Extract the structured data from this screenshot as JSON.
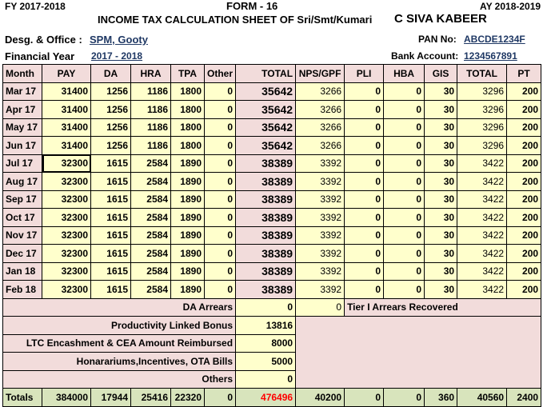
{
  "header": {
    "fy": "FY 2017-2018",
    "form": "FORM - 16",
    "ay": "AY 2018-2019",
    "title": "INCOME TAX CALCULATION SHEET OF Sri/Smt/Kumari",
    "name": "C SIVA KABEER",
    "desg_label": "Desg. & Office :",
    "desg_value": "SPM, Gooty",
    "fin_year_label": "Financial Year",
    "fin_year_value": "2017 - 2018",
    "pan_label": "PAN No:",
    "pan_value": "ABCDE1234F",
    "bank_label": "Bank Account:",
    "bank_value": "1234567891"
  },
  "columns": [
    "Month",
    "PAY",
    "DA",
    "HRA",
    "TPA",
    "Other",
    "TOTAL",
    "NPS/GPF",
    "PLI",
    "HBA",
    "GIS",
    "TOTAL",
    "PT"
  ],
  "rows": [
    [
      "Mar 17",
      "31400",
      "1256",
      "1186",
      "1800",
      "0",
      "35642",
      "3266",
      "0",
      "0",
      "30",
      "3296",
      "200"
    ],
    [
      "Apr 17",
      "31400",
      "1256",
      "1186",
      "1800",
      "0",
      "35642",
      "3266",
      "0",
      "0",
      "30",
      "3296",
      "200"
    ],
    [
      "May 17",
      "31400",
      "1256",
      "1186",
      "1800",
      "0",
      "35642",
      "3266",
      "0",
      "0",
      "30",
      "3296",
      "200"
    ],
    [
      "Jun 17",
      "31400",
      "1256",
      "1186",
      "1800",
      "0",
      "35642",
      "3266",
      "0",
      "0",
      "30",
      "3296",
      "200"
    ],
    [
      "Jul 17",
      "32300",
      "1615",
      "2584",
      "1890",
      "0",
      "38389",
      "3392",
      "0",
      "0",
      "30",
      "3422",
      "200"
    ],
    [
      "Aug 17",
      "32300",
      "1615",
      "2584",
      "1890",
      "0",
      "38389",
      "3392",
      "0",
      "0",
      "30",
      "3422",
      "200"
    ],
    [
      "Sep 17",
      "32300",
      "1615",
      "2584",
      "1890",
      "0",
      "38389",
      "3392",
      "0",
      "0",
      "30",
      "3422",
      "200"
    ],
    [
      "Oct 17",
      "32300",
      "1615",
      "2584",
      "1890",
      "0",
      "38389",
      "3392",
      "0",
      "0",
      "30",
      "3422",
      "200"
    ],
    [
      "Nov 17",
      "32300",
      "1615",
      "2584",
      "1890",
      "0",
      "38389",
      "3392",
      "0",
      "0",
      "30",
      "3422",
      "200"
    ],
    [
      "Dec 17",
      "32300",
      "1615",
      "2584",
      "1890",
      "0",
      "38389",
      "3392",
      "0",
      "0",
      "30",
      "3422",
      "200"
    ],
    [
      "Jan 18",
      "32300",
      "1615",
      "2584",
      "1890",
      "0",
      "38389",
      "3392",
      "0",
      "0",
      "30",
      "3422",
      "200"
    ],
    [
      "Feb 18",
      "32300",
      "1615",
      "2584",
      "1890",
      "0",
      "38389",
      "3392",
      "0",
      "0",
      "30",
      "3422",
      "200"
    ]
  ],
  "extras": [
    {
      "label": "DA Arrears",
      "value": "0"
    },
    {
      "label": "Productivity Linked Bonus",
      "value": "13816"
    },
    {
      "label": "LTC Encashment & CEA Amount Reimbursed",
      "value": "8000"
    },
    {
      "label": "Honarariums,Incentives, OTA Bills",
      "value": "5000"
    },
    {
      "label": "Others",
      "value": "0"
    }
  ],
  "tier": {
    "value": "0",
    "label": "Tier I Arrears Recovered"
  },
  "totals": [
    "Totals",
    "384000",
    "17944",
    "25416",
    "22320",
    "0",
    "476496",
    "40200",
    "0",
    "0",
    "360",
    "40560",
    "2400"
  ],
  "colors": {
    "pink": "#f2dcdb",
    "yellow": "#ffffcc",
    "green": "#d8e4bc",
    "grand_total": "#ff0000",
    "link": "#1f3864"
  }
}
